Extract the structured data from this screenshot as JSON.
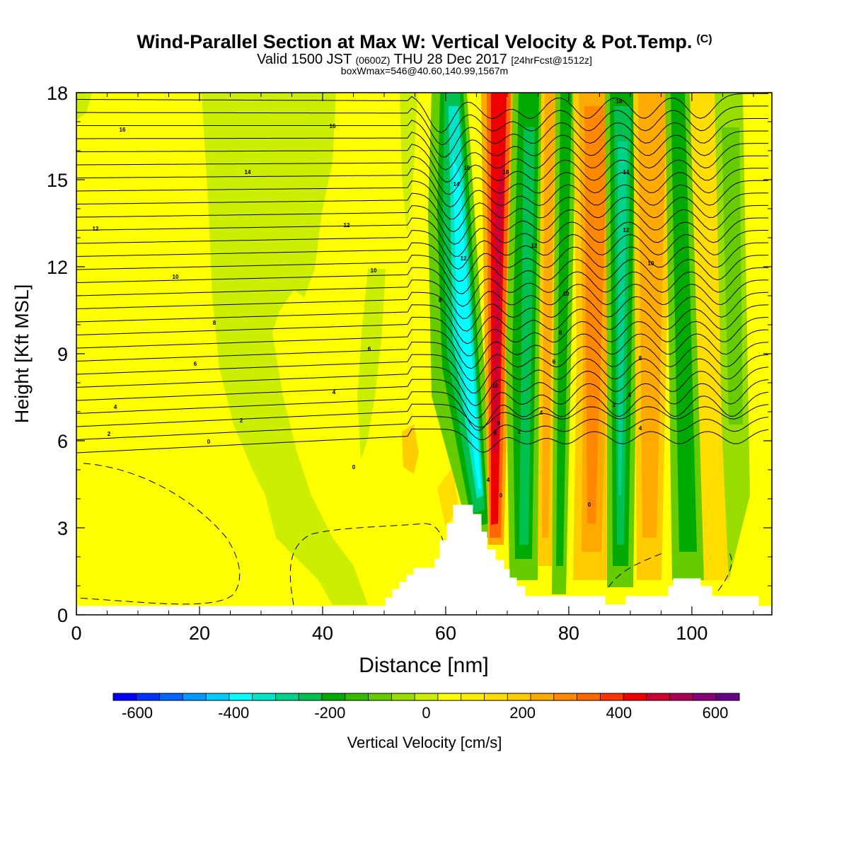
{
  "header": {
    "title": "Wind-Parallel Section at Max W: Vertical Velocity & Pot.Temp.",
    "title_mark": "(C)",
    "subtitle_main": "Valid 1500 JST",
    "subtitle_z": "(0600Z)",
    "subtitle_date": "THU 28 Dec 2017",
    "subtitle_fcst": "[24hrFcst@1512z]",
    "box_info": "boxWmax=546@40.60,140.99,1567m"
  },
  "chart_data": {
    "type": "heatmap",
    "xlabel": "Distance [nm]",
    "ylabel": "Height [Kft MSL]",
    "xlim": [
      0,
      113
    ],
    "ylim": [
      0,
      18
    ],
    "x_ticks": [
      "0",
      "20",
      "40",
      "60",
      "80",
      "100"
    ],
    "y_ticks": [
      "0",
      "3",
      "6",
      "9",
      "12",
      "15",
      "18"
    ],
    "colorbar": {
      "label": "Vertical Velocity [cm/s]",
      "range": [
        -650,
        650
      ],
      "step": 50,
      "tick_labels": [
        "-600",
        "-400",
        "-200",
        "0",
        "200",
        "400",
        "600"
      ],
      "colors": [
        "#0000ff",
        "#0033ff",
        "#0066ff",
        "#0099ff",
        "#00ccff",
        "#00ffff",
        "#00e5c8",
        "#00d28c",
        "#00c050",
        "#00aa00",
        "#33bb00",
        "#66cc00",
        "#99dd00",
        "#ccee00",
        "#ffff00",
        "#ffee00",
        "#ffdd00",
        "#ffcc00",
        "#ffaa00",
        "#ff8800",
        "#ff6600",
        "#ff3300",
        "#ee0000",
        "#cc0033",
        "#aa0055",
        "#880077",
        "#660088"
      ]
    },
    "theta_contour_labels": [
      "0",
      "2",
      "4",
      "6",
      "8",
      "10",
      "12",
      "14",
      "16",
      "18"
    ],
    "max_w": 546
  }
}
